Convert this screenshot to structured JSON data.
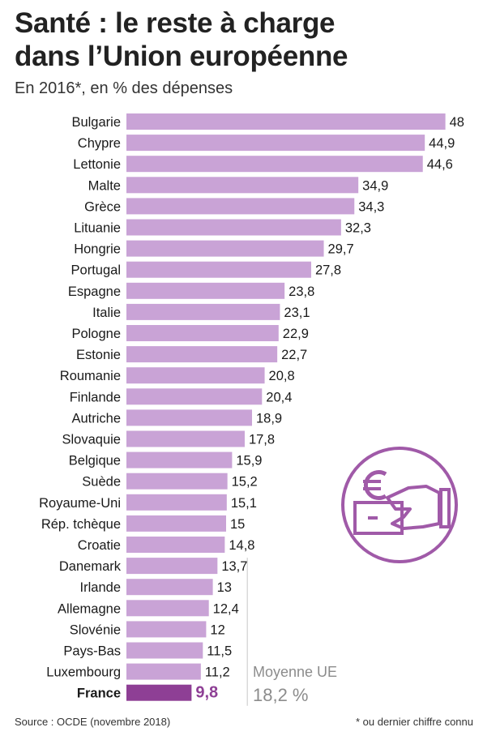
{
  "title_line1": "Santé : le reste à charge",
  "title_line2": "dans l’Union européenne",
  "subtitle": "En 2016*, en % des dépenses",
  "average": {
    "label": "Moyenne UE",
    "value": "18,2 %"
  },
  "source": "Source : OCDE (novembre 2018)",
  "footnote": "* ou dernier chiffre connu",
  "colors": {
    "bar": "#c9a3d6",
    "highlight": "#8e3f95",
    "icon": "#a05aa8",
    "avg_line": "#d9d9d9"
  },
  "icon": "euro-payment-hand-icon",
  "chart_data": {
    "type": "bar",
    "orientation": "horizontal",
    "categories": [
      "Bulgarie",
      "Chypre",
      "Lettonie",
      "Malte",
      "Grèce",
      "Lituanie",
      "Hongrie",
      "Portugal",
      "Espagne",
      "Italie",
      "Pologne",
      "Estonie",
      "Roumanie",
      "Finlande",
      "Autriche",
      "Slovaquie",
      "Belgique",
      "Suède",
      "Royaume-Uni",
      "Rép. tchèque",
      "Croatie",
      "Danemark",
      "Irlande",
      "Allemagne",
      "Slovénie",
      "Pays-Bas",
      "Luxembourg",
      "France"
    ],
    "values": [
      48,
      44.9,
      44.6,
      34.9,
      34.3,
      32.3,
      29.7,
      27.8,
      23.8,
      23.1,
      22.9,
      22.7,
      20.8,
      20.4,
      18.9,
      17.8,
      15.9,
      15.2,
      15.1,
      15,
      14.8,
      13.7,
      13,
      12.4,
      12,
      11.5,
      11.2,
      9.8
    ],
    "value_labels": [
      "48",
      "44,9",
      "44,6",
      "34,9",
      "34,3",
      "32,3",
      "29,7",
      "27,8",
      "23,8",
      "23,1",
      "22,9",
      "22,7",
      "20,8",
      "20,4",
      "18,9",
      "17,8",
      "15,9",
      "15,2",
      "15,1",
      "15",
      "14,8",
      "13,7",
      "13",
      "12,4",
      "12",
      "11,5",
      "11,2",
      "9,8"
    ],
    "highlight": "France",
    "reference_line": 18.2,
    "xlim": [
      0,
      48
    ]
  }
}
